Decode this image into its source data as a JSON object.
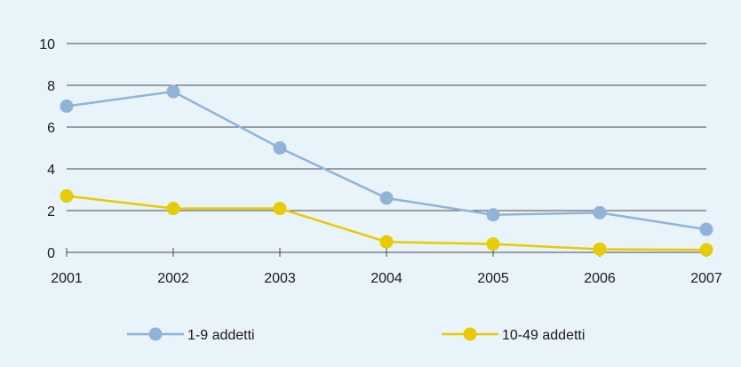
{
  "colors": {
    "background": "#e9f3fa",
    "grid": "#4a4a4a",
    "series_blue": "#8fb4d8",
    "series_yellow": "#e6cc00"
  },
  "chart_data": {
    "type": "line",
    "title": "",
    "xlabel": "",
    "ylabel": "",
    "x": [
      "2001",
      "2002",
      "2003",
      "2004",
      "2005",
      "2006",
      "2007"
    ],
    "ylim": [
      0,
      10
    ],
    "yticks": [
      "0",
      "2",
      "4",
      "6",
      "8",
      "10"
    ],
    "grid": true,
    "legend_position": "bottom",
    "series": [
      {
        "name": "1-9 addetti",
        "color": "#8fb4d8",
        "values": [
          7.0,
          7.7,
          5.0,
          2.6,
          1.8,
          1.9,
          1.1
        ]
      },
      {
        "name": "10-49 addetti",
        "color": "#e6cc00",
        "values": [
          2.7,
          2.1,
          2.1,
          0.5,
          0.4,
          0.15,
          0.12
        ]
      }
    ]
  }
}
